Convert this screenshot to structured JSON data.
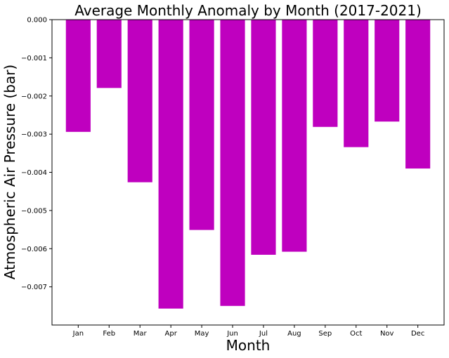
{
  "chart_data": {
    "type": "bar",
    "title": "Average Monthly Anomaly by Month (2017-2021)",
    "xlabel": "Month",
    "ylabel": "Atmospheric Air Pressure (bar)",
    "categories": [
      "Jan",
      "Feb",
      "Mar",
      "Apr",
      "May",
      "Jun",
      "Jul",
      "Aug",
      "Sep",
      "Oct",
      "Nov",
      "Dec"
    ],
    "values": [
      -0.00294,
      -0.00179,
      -0.00426,
      -0.00757,
      -0.00551,
      -0.0075,
      -0.00616,
      -0.00608,
      -0.00281,
      -0.00334,
      -0.00267,
      -0.0039
    ],
    "ylim": [
      -0.008,
      0.0
    ],
    "yticks": [
      0.0,
      -0.001,
      -0.002,
      -0.003,
      -0.004,
      -0.005,
      -0.006,
      -0.007
    ],
    "ytick_labels": [
      "0.000",
      "−0.001",
      "−0.002",
      "−0.003",
      "−0.004",
      "−0.005",
      "−0.006",
      "−0.007"
    ],
    "bar_color": "#bf00bf",
    "grid": false,
    "legend": "none"
  }
}
